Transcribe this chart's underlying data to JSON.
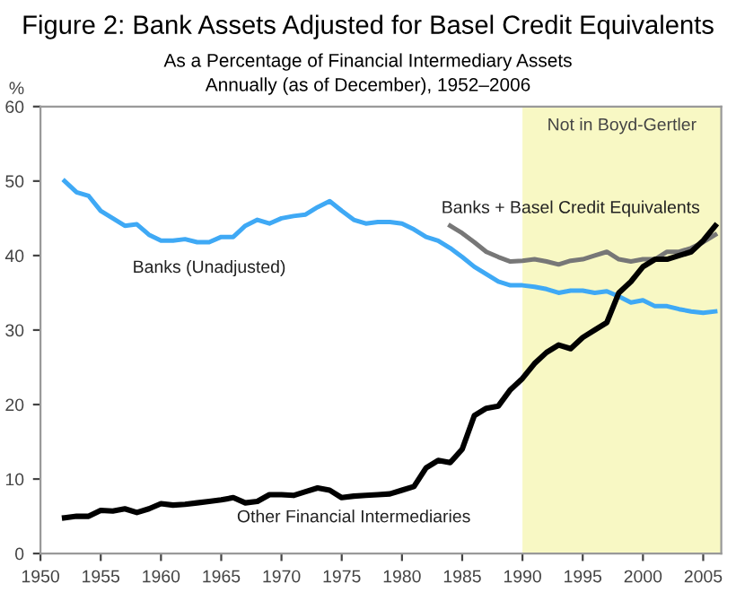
{
  "chart_data": {
    "type": "line",
    "title": "Figure 2: Bank Assets Adjusted for Basel Credit Equivalents",
    "subtitle": "As a Percentage of Financial Intermediary Assets\nAnnually (as of December), 1952–2006",
    "ylabel": "%",
    "xlim": [
      1950,
      2006.5
    ],
    "xticks": [
      1950,
      1955,
      1960,
      1965,
      1970,
      1975,
      1980,
      1985,
      1990,
      1995,
      2000,
      2005
    ],
    "ylim": [
      0,
      60
    ],
    "yticks": [
      0,
      10,
      20,
      30,
      40,
      50,
      60
    ],
    "grid": false,
    "legend": false,
    "marker": "none",
    "line_style": "solid",
    "bands": [
      {
        "axis": "x",
        "from": 1990,
        "to": 2006.5,
        "label": "Not in Boyd-Gertler",
        "color": "#f8f8c4"
      }
    ],
    "series": [
      {
        "name": "Banks (Unadjusted)",
        "color": "#3fa9f5",
        "x": [
          1952,
          1953,
          1954,
          1955,
          1956,
          1957,
          1958,
          1959,
          1960,
          1961,
          1962,
          1963,
          1964,
          1965,
          1966,
          1967,
          1968,
          1969,
          1970,
          1971,
          1972,
          1973,
          1974,
          1975,
          1976,
          1977,
          1978,
          1979,
          1980,
          1981,
          1982,
          1983,
          1984,
          1985,
          1986,
          1987,
          1988,
          1989,
          1990,
          1991,
          1992,
          1993,
          1994,
          1995,
          1996,
          1997,
          1998,
          1999,
          2000,
          2001,
          2002,
          2003,
          2004,
          2005,
          2006
        ],
        "values": [
          50,
          48.5,
          48,
          46,
          45,
          44,
          44.2,
          42.8,
          42,
          42,
          42.2,
          41.8,
          41.8,
          42.5,
          42.5,
          44,
          44.8,
          44.3,
          45,
          45.3,
          45.5,
          46.5,
          47.3,
          46,
          44.8,
          44.3,
          44.5,
          44.5,
          44.3,
          43.5,
          42.5,
          42,
          41,
          39.8,
          38.5,
          37.5,
          36.5,
          36,
          36,
          35.8,
          35.5,
          35,
          35.3,
          35.3,
          35,
          35.2,
          34.5,
          33.7,
          34,
          33.2,
          33.2,
          32.8,
          32.5,
          32.3,
          32.5
        ]
      },
      {
        "name": "Banks + Basel Credit Equivalents",
        "color": "#777777",
        "x": [
          1984,
          1985,
          1986,
          1987,
          1988,
          1989,
          1990,
          1991,
          1992,
          1993,
          1994,
          1995,
          1996,
          1997,
          1998,
          1999,
          2000,
          2001,
          2002,
          2003,
          2004,
          2005,
          2006
        ],
        "values": [
          44,
          43,
          41.8,
          40.5,
          39.8,
          39.2,
          39.3,
          39.5,
          39.2,
          38.8,
          39.3,
          39.5,
          40,
          40.5,
          39.5,
          39.2,
          39.5,
          39.5,
          40.5,
          40.5,
          41,
          41.8,
          42.8
        ]
      },
      {
        "name": "Other Financial Intermediaries",
        "color": "#000000",
        "x": [
          1952,
          1953,
          1954,
          1955,
          1956,
          1957,
          1958,
          1959,
          1960,
          1961,
          1962,
          1963,
          1964,
          1965,
          1966,
          1967,
          1968,
          1969,
          1970,
          1971,
          1972,
          1973,
          1974,
          1975,
          1976,
          1977,
          1978,
          1979,
          1980,
          1981,
          1982,
          1983,
          1984,
          1985,
          1986,
          1987,
          1988,
          1989,
          1990,
          1991,
          1992,
          1993,
          1994,
          1995,
          1996,
          1997,
          1998,
          1999,
          2000,
          2001,
          2002,
          2003,
          2004,
          2005,
          2006
        ],
        "values": [
          4.8,
          5,
          5,
          5.8,
          5.7,
          6,
          5.5,
          6,
          6.7,
          6.5,
          6.6,
          6.8,
          7,
          7.2,
          7.5,
          6.8,
          7,
          7.9,
          7.9,
          7.8,
          8.3,
          8.8,
          8.5,
          7.5,
          7.7,
          7.8,
          7.9,
          8,
          8.5,
          9,
          11.5,
          12.5,
          12.2,
          14,
          18.5,
          19.5,
          19.8,
          22,
          23.5,
          25.5,
          27,
          28,
          27.5,
          29,
          30,
          31,
          35,
          36.5,
          38.5,
          39.5,
          39.5,
          40,
          40.5,
          42,
          44
        ]
      }
    ]
  }
}
